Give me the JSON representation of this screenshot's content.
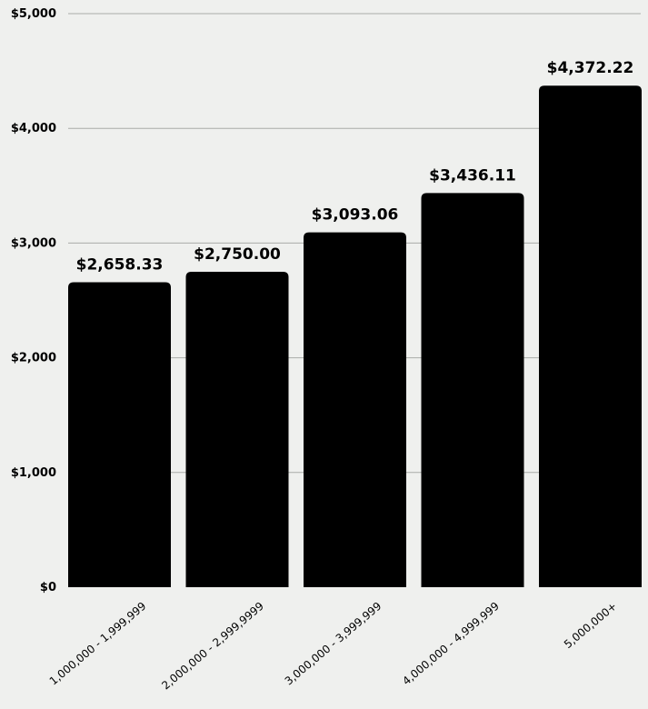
{
  "chart_data": {
    "type": "bar",
    "categories": [
      "1,000,000 - 1,999,999",
      "2,000,000 - 2,999,9999",
      "3,000,000 - 3,999,999",
      "4,000,000 - 4,999,999",
      "5,000,000+"
    ],
    "values": [
      2658.33,
      2750.0,
      3093.06,
      3436.11,
      4372.22
    ],
    "data_labels": [
      "$2,658.33",
      "$2,750.00",
      "$3,093.06",
      "$3,436.11",
      "$4,372.22"
    ],
    "yticks": [
      0,
      1000,
      2000,
      3000,
      4000,
      5000
    ],
    "ytick_labels": [
      "$0",
      "$1,000",
      "$2,000",
      "$3,000",
      "$4,000",
      "$5,000"
    ],
    "ylim": [
      0,
      5000
    ],
    "grid": true,
    "bar_color": "#000000",
    "background": "#eff0ee",
    "title": "",
    "xlabel": "",
    "ylabel": ""
  }
}
